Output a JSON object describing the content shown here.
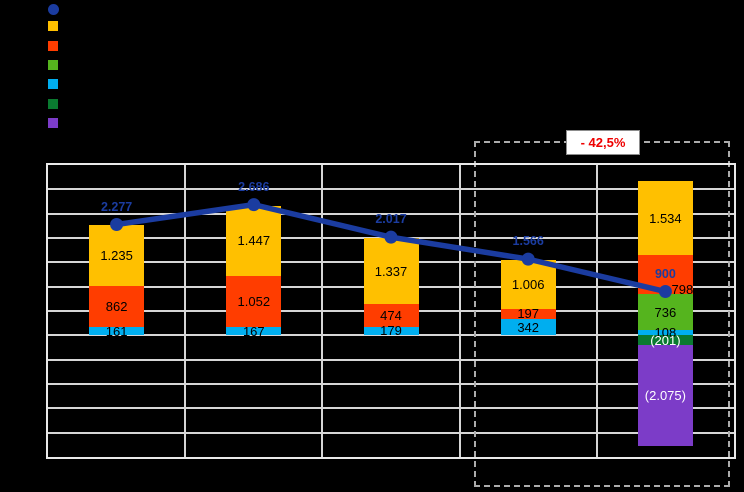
{
  "window": {
    "background": "#000000"
  },
  "legend": {
    "position": "top-left",
    "items": [
      {
        "name": "line-series",
        "marker": "circle",
        "color": "#1B3CA0",
        "label": ""
      },
      {
        "name": "series-yellow",
        "marker": "square",
        "color": "#FFC000",
        "label": ""
      },
      {
        "name": "series-orange",
        "marker": "square",
        "color": "#FF3D00",
        "label": ""
      },
      {
        "name": "series-green",
        "marker": "square",
        "color": "#55B41E",
        "label": ""
      },
      {
        "name": "series-cyan",
        "marker": "square",
        "color": "#00AEEF",
        "label": ""
      },
      {
        "name": "series-dark-green",
        "marker": "square",
        "color": "#0A7A30",
        "label": ""
      },
      {
        "name": "series-purple",
        "marker": "square",
        "color": "#7C3CC8",
        "label": ""
      }
    ]
  },
  "chart_data": {
    "type": "bar",
    "subtype": "stacked-bars-with-line-overlay",
    "categories": [
      "",
      "",
      "",
      "",
      ""
    ],
    "ylim": [
      -2500,
      3500
    ],
    "ytick_step": 500,
    "grid": true,
    "axis_tick_labels_visible": false,
    "legend_position": "top-left",
    "style": {
      "plot_background": "#000000",
      "gridline_color": "#D6D6D6",
      "plot_border_color": "#E9E9E9",
      "dashed_box_color": "#ACACAC"
    },
    "series": [
      {
        "name": "total-line",
        "type": "line",
        "color": "#1B3CA0",
        "values": [
          2277,
          2686,
          2017,
          1566,
          900
        ],
        "labels": [
          "2.277",
          "2.686",
          "2.017",
          "1.566",
          "900"
        ]
      },
      {
        "name": "yellow-segment",
        "type": "bar",
        "color": "#FFC000",
        "label_color": "#000000",
        "values": [
          1235,
          1447,
          1337,
          1006,
          1534
        ],
        "labels": [
          "1.235",
          "1.447",
          "1.337",
          "1.006",
          "1.534"
        ]
      },
      {
        "name": "orange-segment",
        "type": "bar",
        "color": "#FF3D00",
        "label_color": "#000000",
        "values": [
          862,
          1052,
          474,
          197,
          798
        ],
        "labels": [
          "862",
          "1.052",
          "474",
          "197",
          "798"
        ],
        "label_offsets": {
          "4": {
            "dx": 17,
            "dy": 15
          }
        }
      },
      {
        "name": "green-segment",
        "type": "bar",
        "color": "#55B41E",
        "label_color": "#000000",
        "values": [
          0,
          0,
          0,
          0,
          736
        ],
        "labels": [
          "",
          "",
          "",
          "",
          "736"
        ]
      },
      {
        "name": "cyan-segment",
        "type": "bar",
        "color": "#00AEEF",
        "label_color": "#000000",
        "values": [
          161,
          167,
          179,
          342,
          108
        ],
        "labels": [
          "161",
          "167",
          "179",
          "342",
          "108"
        ]
      },
      {
        "name": "dark-green-segment",
        "type": "bar",
        "color": "#0A7A30",
        "label_color": "#FFFFFF",
        "values": [
          0,
          0,
          0,
          0,
          -201
        ],
        "labels": [
          "",
          "",
          "",
          "",
          "(201)"
        ]
      },
      {
        "name": "purple-segment",
        "type": "bar",
        "color": "#7C3CC8",
        "label_color": "#FFFFFF",
        "values": [
          0,
          0,
          0,
          0,
          -2075
        ],
        "labels": [
          "",
          "",
          "",
          "",
          "(2.075)"
        ]
      }
    ],
    "stack_order_bottom_to_top": [
      "cyan-segment",
      "green-segment",
      "orange-segment",
      "yellow-segment"
    ],
    "negative_stack_order": [
      "dark-green-segment",
      "purple-segment"
    ],
    "annotation": {
      "text": "- 42,5%",
      "text_color": "#EE0000",
      "applies_to_categories": [
        3,
        4
      ],
      "box_style": "dashed"
    }
  }
}
